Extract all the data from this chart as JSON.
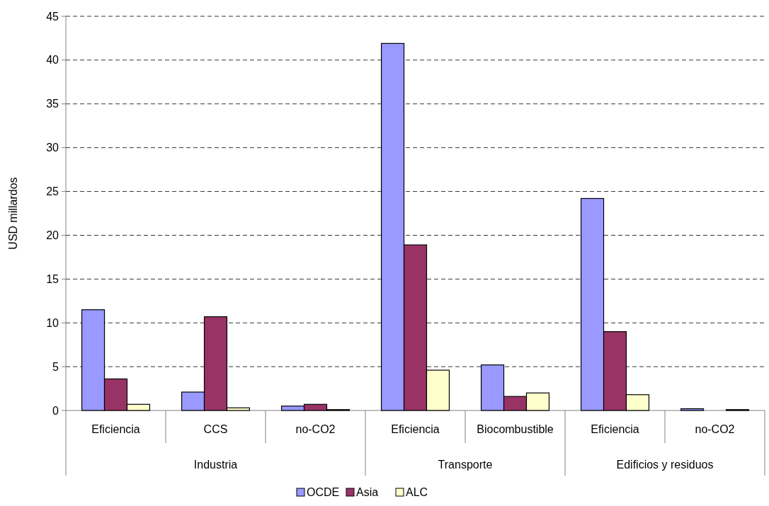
{
  "chart_data": {
    "type": "bar",
    "ylabel": "USD millardos",
    "categories": [
      "Eficiencia",
      "CCS",
      "no-CO2",
      "Eficiencia",
      "Biocombustible",
      "Eficiencia",
      "no-CO2"
    ],
    "series": [
      {
        "name": "OCDE",
        "color": "#9999ff",
        "values": [
          11.5,
          2.1,
          0.5,
          41.9,
          5.2,
          24.2,
          0.2
        ]
      },
      {
        "name": "Asia",
        "color": "#993366",
        "values": [
          3.6,
          10.7,
          0.7,
          18.9,
          1.6,
          9.0,
          0
        ]
      },
      {
        "name": "ALC",
        "color": "#ffffcc",
        "values": [
          0.7,
          0.3,
          0.1,
          4.6,
          2.0,
          1.8,
          0.1
        ]
      }
    ],
    "annotations": [
      "Industria",
      "Transporte",
      "Edificios y residuos"
    ],
    "ylim": [
      0,
      45
    ],
    "yticks": [
      0,
      5,
      10,
      15,
      20,
      25,
      30,
      35,
      40,
      45
    ],
    "grid": "y",
    "legend": "bottom"
  }
}
